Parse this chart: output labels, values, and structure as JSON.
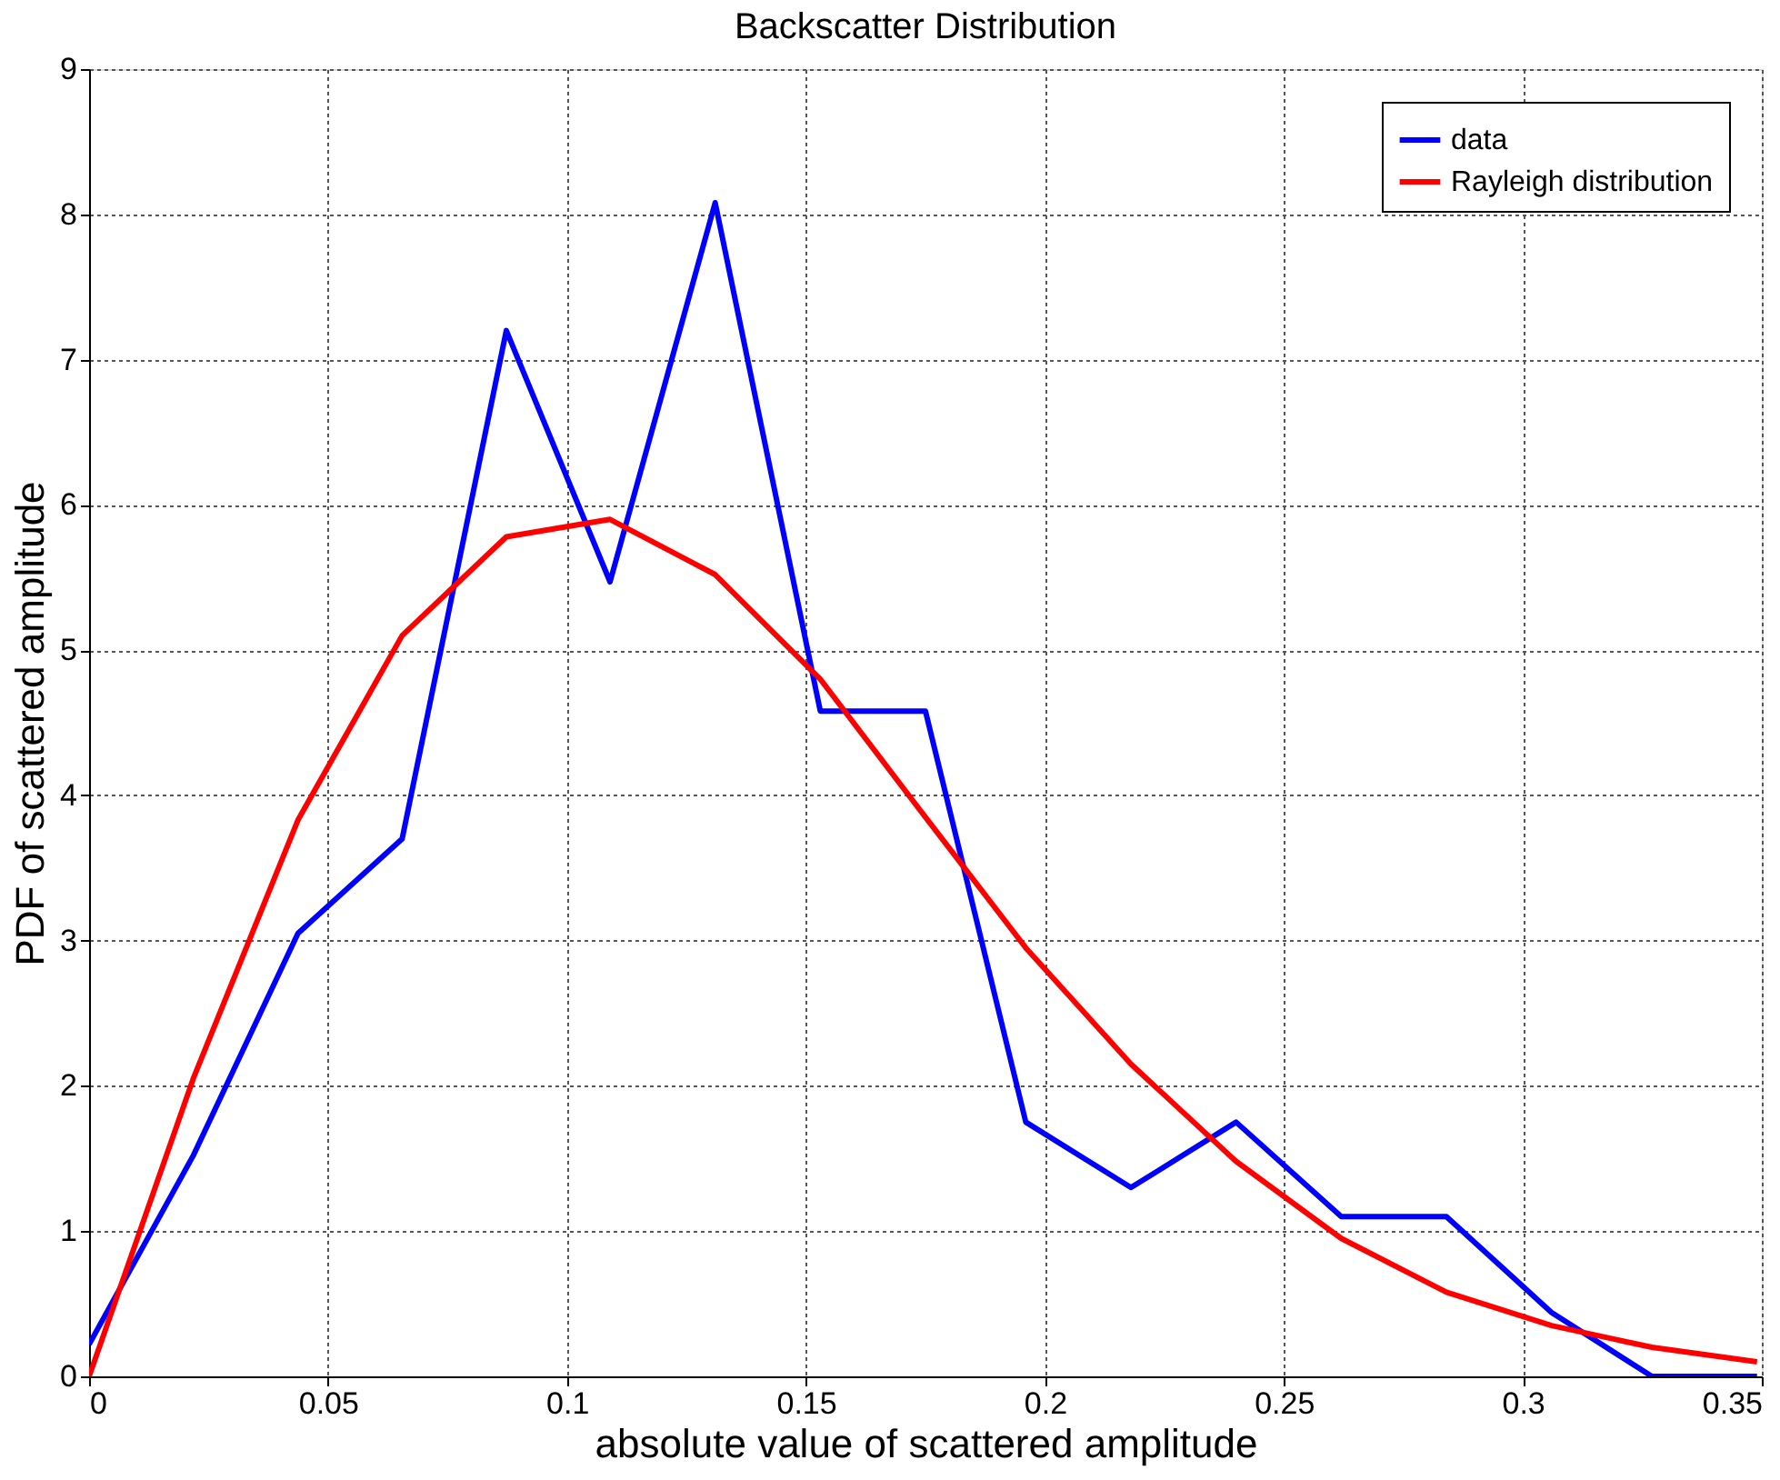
{
  "chart_data": {
    "type": "line",
    "title": "Backscatter Distribution",
    "xlabel": "absolute value of scattered amplitude",
    "ylabel": "PDF of scattered amplitude",
    "x": [
      0,
      0.0218,
      0.0437,
      0.0655,
      0.0873,
      0.109,
      0.131,
      0.153,
      0.175,
      0.196,
      0.218,
      0.24,
      0.262,
      0.284,
      0.306,
      0.327,
      0.349
    ],
    "series": [
      {
        "name": "data",
        "color": "#0000ff",
        "values": [
          0.22,
          1.52,
          3.05,
          3.7,
          7.2,
          5.47,
          8.08,
          4.58,
          4.58,
          1.75,
          1.3,
          1.75,
          1.1,
          1.1,
          0.44,
          0,
          0
        ]
      },
      {
        "name": "Rayleigh distribution",
        "color": "#ff0000",
        "values": [
          0,
          2.05,
          3.83,
          5.1,
          5.78,
          5.9,
          5.52,
          4.8,
          3.85,
          2.95,
          2.15,
          1.48,
          0.95,
          0.58,
          0.35,
          0.2,
          0.1
        ]
      }
    ],
    "xlim": [
      0,
      0.35
    ],
    "xticks": [
      0,
      0.05,
      0.1,
      0.15,
      0.2,
      0.25,
      0.3,
      0.35
    ],
    "ylim": [
      0,
      9
    ],
    "yticks": [
      0,
      1,
      2,
      3,
      4,
      5,
      6,
      7,
      8,
      9
    ],
    "grid": true,
    "legend": "top right",
    "marker": "none",
    "line_style": "solid"
  }
}
